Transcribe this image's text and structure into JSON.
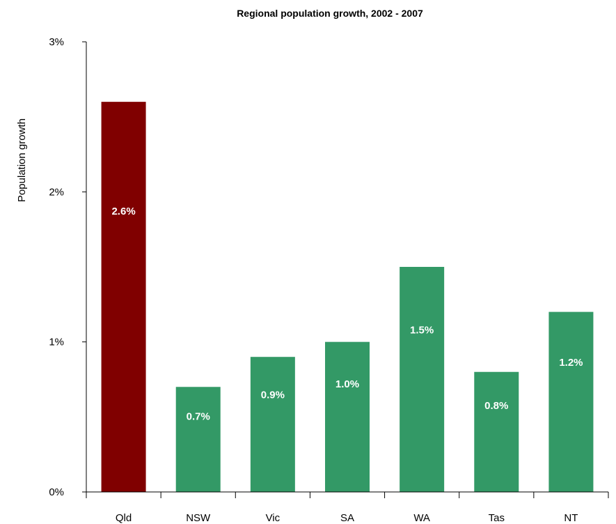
{
  "chart_data": {
    "type": "bar",
    "title": "Regional population growth, 2002 - 2007",
    "xlabel": "",
    "ylabel": "Population growth",
    "categories": [
      "Qld",
      "NSW",
      "Vic",
      "SA",
      "WA",
      "Tas",
      "NT"
    ],
    "values": [
      2.6,
      0.7,
      0.9,
      1.0,
      1.5,
      0.8,
      1.2
    ],
    "data_labels": [
      "2.6%",
      "0.7%",
      "0.9%",
      "1.0%",
      "1.5%",
      "0.8%",
      "1.2%"
    ],
    "ylim": [
      0,
      3
    ],
    "yticks": [
      0,
      1,
      2,
      3
    ],
    "ytick_labels": [
      "0%",
      "1%",
      "2%",
      "3%"
    ],
    "grid": false,
    "legend": "none",
    "colors": {
      "highlight": "#800000",
      "default": "#339966",
      "axis": "#000000"
    },
    "highlight_categories": [
      "Qld"
    ]
  }
}
